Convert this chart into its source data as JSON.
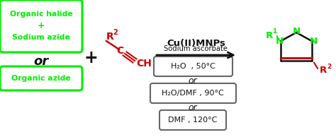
{
  "bg_color": "#ffffff",
  "green_color": "#00ee00",
  "red_color": "#cc0000",
  "dark_color": "#111111",
  "figsize": [
    4.74,
    1.94
  ],
  "dpi": 100,
  "box1_lines": [
    "Organic halide",
    "+",
    "Sodium azide"
  ],
  "box2_text": "Organic azide",
  "or1": "or",
  "plus": "+",
  "cond1": "H₂O  , 50°C",
  "cond2": "H₂O/DMF , 90°C",
  "cond3": "DMF , 120°C",
  "or2": "or",
  "or3": "or",
  "arrow_label1": "Cu(II)MNPs",
  "arrow_label2": "Sodium ascorbate"
}
